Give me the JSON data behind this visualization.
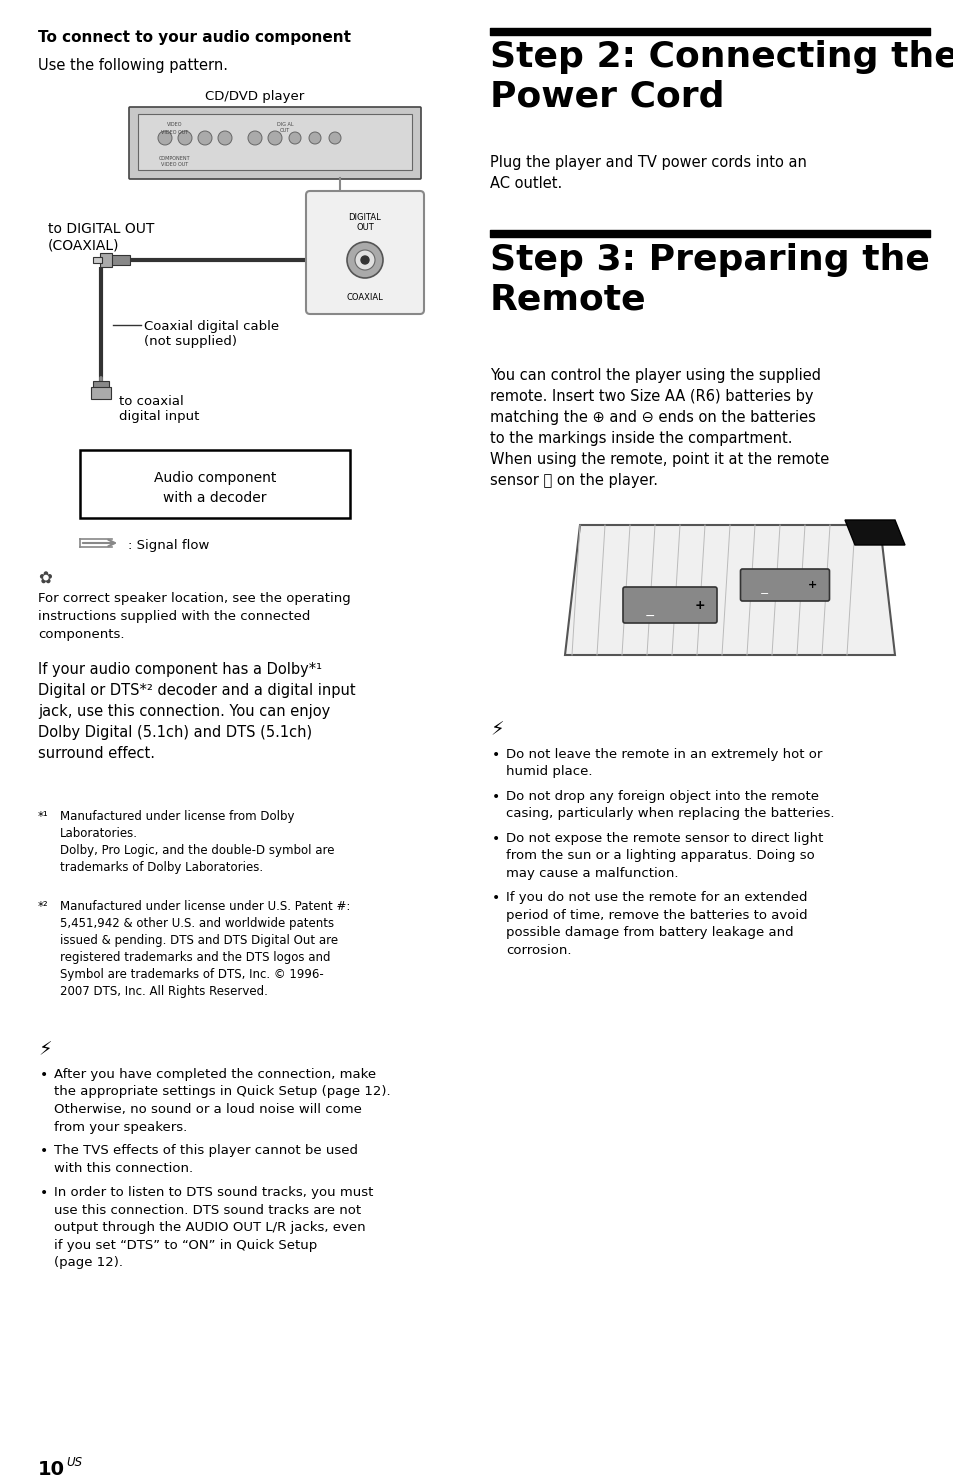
{
  "page_bg": "#ffffff",
  "title_step2": "Step 2: Connecting the\nPower Cord",
  "title_step3": "Step 3: Preparing the\nRemote",
  "header_audio": "To connect to your audio component",
  "subheader_audio": "Use the following pattern.",
  "step2_body": "Plug the player and TV power cords into an\nAC outlet.",
  "step3_body": "You can control the player using the supplied\nremote. Insert two Size AA (R6) batteries by\nmatching the ⊕ and ⊖ ends on the batteries\nto the markings inside the compartment.\nWhen using the remote, point it at the remote\nsensor Ⓡ on the player.",
  "tip_text": "For correct speaker location, see the operating\ninstructions supplied with the connected\ncomponents.",
  "dolby_text_line1": "If your audio component has a Dolby*",
  "dolby_text_line2": "Digital or DTS*",
  "dolby_text_rest": " decoder and a digital input\njack, use this connection. You can enjoy\nDolby Digital (5.1ch) and DTS (5.1ch)\nsurround effect.",
  "footnote1_marker": "*1",
  "footnote1_text": "Manufactured under license from Dolby\nLaboratories.\nDolby, Pro Logic, and the double-D symbol are\ntrademarks of Dolby Laboratories.",
  "footnote2_marker": "*2",
  "footnote2_text": "Manufactured under license under U.S. Patent #:\n5,451,942 & other U.S. and worldwide patents\nissued & pending. DTS and DTS Digital Out are\nregistered trademarks and the DTS logos and\nSymbol are trademarks of DTS, Inc. © 1996-\n2007 DTS, Inc. All Rights Reserved.",
  "warning_left_bullets": [
    "After you have completed the connection, make\nthe appropriate settings in Quick Setup (page 12).\nOtherwise, no sound or a loud noise will come\nfrom your speakers.",
    "The TVS effects of this player cannot be used\nwith this connection.",
    "In order to listen to DTS sound tracks, you must\nuse this connection. DTS sound tracks are not\noutput through the AUDIO OUT L/R jacks, even\nif you set “DTS” to “ON” in Quick Setup\n(page 12)."
  ],
  "warning_right_bullets": [
    "Do not leave the remote in an extremely hot or\nhumid place.",
    "Do not drop any foreign object into the remote\ncasing, particularly when replacing the batteries.",
    "Do not expose the remote sensor to direct light\nfrom the sun or a lighting apparatus. Doing so\nmay cause a malfunction.",
    "If you do not use the remote for an extended\nperiod of time, remove the batteries to avoid\npossible damage from battery leakage and\ncorrosion."
  ],
  "page_number": "10",
  "diagram_labels": {
    "cd_dvd": "CD/DVD player",
    "digital_out": "to DIGITAL OUT\n(COAXIAL)",
    "coaxial_cable": "Coaxial digital cable\n(not supplied)",
    "coaxial_input": "to coaxial\ndigital input",
    "audio_comp": "Audio component\nwith a decoder",
    "signal_flow": ": Signal flow"
  }
}
